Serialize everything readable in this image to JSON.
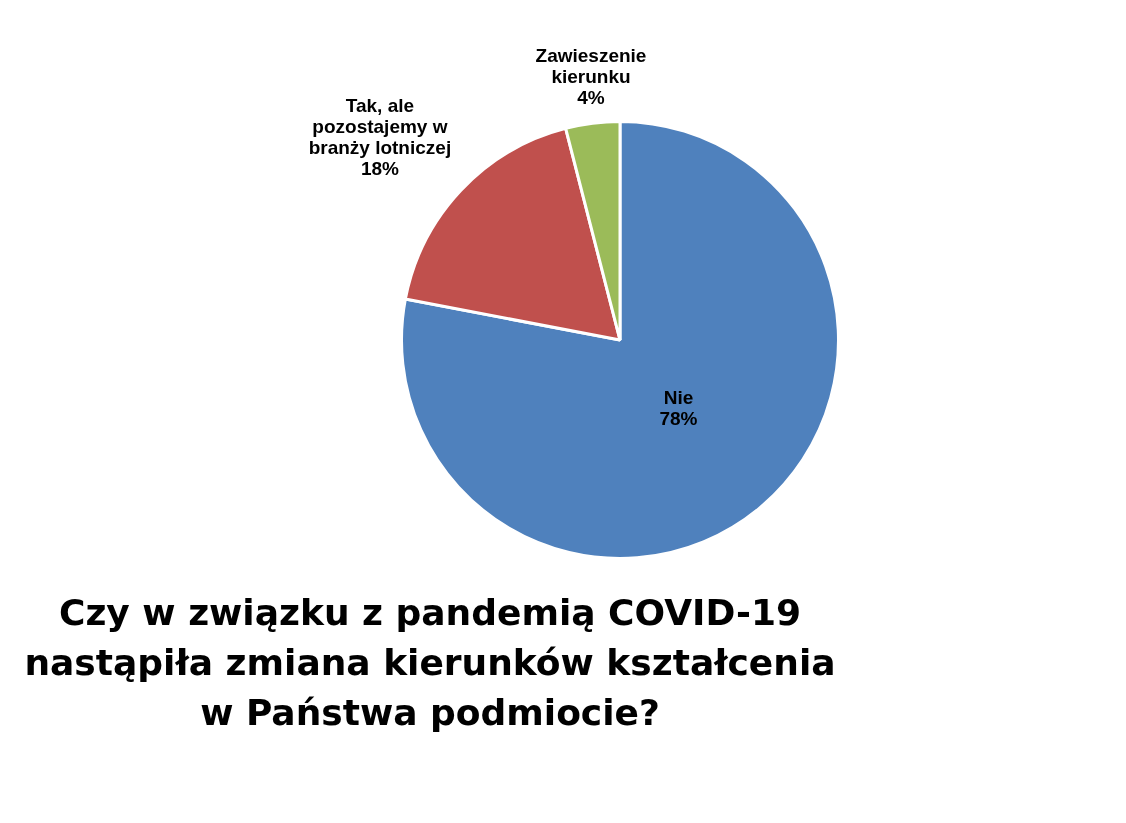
{
  "chart_data": {
    "type": "pie",
    "title": "Czy w związku z pandemią COVID-19 nastąpiła zmiana kierunków kształcenia w Państwa podmiocie?",
    "categories": [
      "Nie",
      "Tak, ale pozostajemy w branży lotniczej",
      "Zawieszenie kierunku"
    ],
    "values": [
      78,
      18,
      4
    ],
    "value_labels": [
      "78%",
      "18%",
      "4%"
    ],
    "colors": [
      "#4f81bd",
      "#c0504d",
      "#9bbb59"
    ],
    "legend": false
  }
}
